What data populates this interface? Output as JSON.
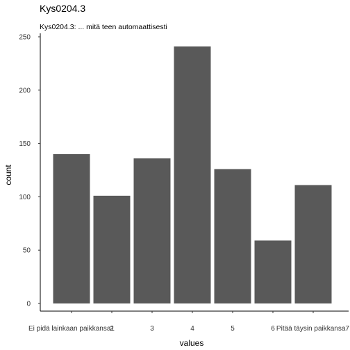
{
  "chart_data": {
    "type": "bar",
    "title": "Kys0204.3",
    "subtitle": "Kys0204.3: ... mitä teen automaattisesti",
    "xlabel": "values",
    "ylabel": "count",
    "categories": [
      "Ei pidä lainkaan paikkansa1",
      "2",
      "3",
      "4",
      "5",
      "6",
      "Pitää täysin paikkansa7"
    ],
    "values": [
      140,
      101,
      136,
      241,
      126,
      59,
      111
    ],
    "ylim": [
      0,
      250
    ],
    "yticks": [
      0,
      50,
      100,
      150,
      200,
      250
    ],
    "grid": false,
    "bar_color": "#595959"
  }
}
